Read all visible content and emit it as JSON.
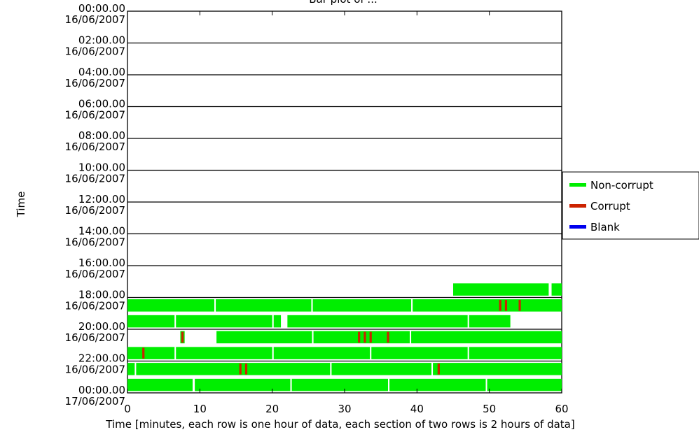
{
  "chart_data": {
    "type": "timeline",
    "title": "Bar plot of ...",
    "xlabel": "Time [minutes, each row is one hour of data, each section of two rows is 2 hours of data]",
    "ylabel": "Time",
    "xlim": [
      0,
      60
    ],
    "x_ticks": [
      "0",
      "10",
      "20",
      "30",
      "40",
      "50",
      "60"
    ],
    "y_ticks": [
      {
        "time": "00:00.00",
        "date": "16/06/2007"
      },
      {
        "time": "02:00.00",
        "date": "16/06/2007"
      },
      {
        "time": "04:00.00",
        "date": "16/06/2007"
      },
      {
        "time": "06:00.00",
        "date": "16/06/2007"
      },
      {
        "time": "08:00.00",
        "date": "16/06/2007"
      },
      {
        "time": "10:00.00",
        "date": "16/06/2007"
      },
      {
        "time": "12:00.00",
        "date": "16/06/2007"
      },
      {
        "time": "14:00.00",
        "date": "16/06/2007"
      },
      {
        "time": "16:00.00",
        "date": "16/06/2007"
      },
      {
        "time": "18:00.00",
        "date": "16/06/2007"
      },
      {
        "time": "20:00.00",
        "date": "16/06/2007"
      },
      {
        "time": "22:00.00",
        "date": "16/06/2007"
      },
      {
        "time": "00:00.00",
        "date": "17/06/2007"
      }
    ],
    "legend": [
      {
        "label": "Non-corrupt",
        "color": "#00ee00"
      },
      {
        "label": "Corrupt",
        "color": "#cc2200"
      },
      {
        "label": "Blank",
        "color": "#0000ee"
      }
    ],
    "legend_position": "right",
    "rows": [
      {
        "hour": "17:00",
        "segments": [
          [
            45,
            58.2
          ],
          [
            58.6,
            60
          ]
        ],
        "corrupt": []
      },
      {
        "hour": "18:00",
        "segments": [
          [
            0,
            12
          ],
          [
            12.2,
            25.4
          ],
          [
            25.6,
            39.2
          ],
          [
            39.4,
            60
          ]
        ],
        "corrupt": [
          51.5,
          52.3,
          54.2
        ]
      },
      {
        "hour": "19:00",
        "segments": [
          [
            0,
            6.5
          ],
          [
            6.7,
            20
          ],
          [
            20.2,
            21.2
          ],
          [
            22.1,
            47
          ],
          [
            47.2,
            52.9
          ]
        ],
        "corrupt": []
      },
      {
        "hour": "20:00",
        "segments": [
          [
            7.3,
            7.9
          ],
          [
            12.3,
            25.5
          ],
          [
            25.7,
            39
          ],
          [
            39.2,
            60
          ]
        ],
        "corrupt": [
          7.6,
          32,
          32.8,
          33.6,
          36
        ]
      },
      {
        "hour": "21:00",
        "segments": [
          [
            0,
            6.5
          ],
          [
            6.7,
            20
          ],
          [
            20.2,
            33.5
          ],
          [
            33.7,
            47
          ],
          [
            47.2,
            60
          ]
        ],
        "corrupt": [
          2.2
        ]
      },
      {
        "hour": "22:00",
        "segments": [
          [
            0,
            1
          ],
          [
            1.2,
            28
          ],
          [
            28.2,
            42
          ],
          [
            42.2,
            60
          ]
        ],
        "corrupt": [
          15.6,
          16.4,
          43
        ]
      },
      {
        "hour": "23:00",
        "segments": [
          [
            0,
            9
          ],
          [
            9.3,
            22.5
          ],
          [
            22.7,
            36
          ],
          [
            36.2,
            49.5
          ],
          [
            49.7,
            60
          ]
        ],
        "corrupt": []
      }
    ]
  }
}
